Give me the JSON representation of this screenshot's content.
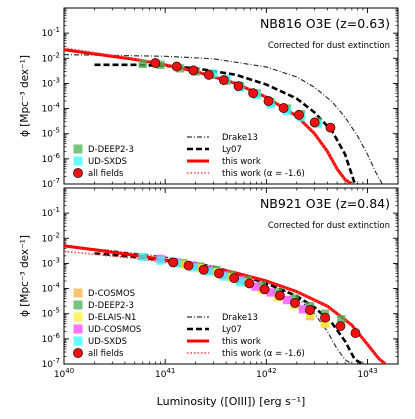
{
  "chart_data": [
    {
      "type": "scatter",
      "title": "NB816 O3E (z=0.63)",
      "subtitle": "Corrected for dust extinction",
      "xlabel": "Luminosity ([OIII]) [erg s⁻¹]",
      "ylabel": "ϕ [Mpc⁻³ dex⁻¹]",
      "x_scale": "log",
      "y_scale": "log",
      "xlim": [
        1e+40,
        2e+43
      ],
      "ylim": [
        1e-07,
        1
      ],
      "x_ticks": [
        {
          "value": 1e+40,
          "base": "10",
          "exp": "40"
        },
        {
          "value": 1e+41,
          "base": "10",
          "exp": "41"
        },
        {
          "value": 1e+42,
          "base": "10",
          "exp": "42"
        },
        {
          "value": 1e+43,
          "base": "10",
          "exp": "43"
        }
      ],
      "y_ticks": [
        {
          "value": 1e-07,
          "base": "10",
          "exp": "-7"
        },
        {
          "value": 1e-06,
          "base": "10",
          "exp": "-6"
        },
        {
          "value": 1e-05,
          "base": "10",
          "exp": "-5"
        },
        {
          "value": 0.0001,
          "base": "10",
          "exp": "-4"
        },
        {
          "value": 0.001,
          "base": "10",
          "exp": "-3"
        },
        {
          "value": 0.01,
          "base": "10",
          "exp": "-2"
        },
        {
          "value": 0.1,
          "base": "10",
          "exp": "-1"
        }
      ],
      "legend_position": "lower-left and lower-center",
      "points": [
        {
          "name": "D-DEEP2-3",
          "marker": "square",
          "color": "#4caf50",
          "x": [
            6e+40,
            9e+40,
            1.4e+41,
            2e+41,
            2.8e+41,
            4e+41,
            5.5e+41,
            8e+41,
            1.1e+42,
            1.6e+42,
            2.2e+42,
            3.2e+42
          ],
          "y": [
            0.006,
            0.0055,
            0.004,
            0.003,
            0.0022,
            0.0013,
            0.0008,
            0.0004,
            0.00018,
            0.0001,
            6e-05,
            3e-05
          ]
        },
        {
          "name": "UD-SXDS",
          "marker": "square",
          "color": "#33ffff",
          "x": [
            3e+41,
            4e+41,
            5.5e+41,
            8e+41,
            1.1e+42,
            1.6e+42,
            2.2e+42,
            3.2e+42
          ],
          "y": [
            0.0025,
            0.0015,
            0.0007,
            0.00035,
            0.00015,
            8e-05,
            4.5e-05,
            2.5e-05
          ]
        },
        {
          "name": "all fields",
          "marker": "circle",
          "color": "#ee1111",
          "x": [
            8e+40,
            1.3e+41,
            1.9e+41,
            2.7e+41,
            3.8e+41,
            5.3e+41,
            7.4e+41,
            1.05e+42,
            1.48e+42,
            2.1e+42,
            3e+42,
            4.3e+42
          ],
          "y": [
            0.0065,
            0.0047,
            0.0033,
            0.0022,
            0.00135,
            0.00078,
            0.00041,
            0.0002,
            0.000105,
            5.6e-05,
            2.8e-05,
            1.75e-05
          ]
        }
      ],
      "lines": [
        {
          "name": "Drake13",
          "style": "dashdot-gray",
          "color": "#333333",
          "x": [
            1e+40,
            3e+40,
            1e+41,
            3e+41,
            1e+42,
            2e+42,
            3e+42,
            4.5e+42,
            6e+42,
            8e+42,
            1e+43,
            1.2e+43,
            1.4e+43
          ],
          "y": [
            0.014,
            0.013,
            0.012,
            0.0095,
            0.0045,
            0.0018,
            0.0007,
            0.00018,
            4.5e-05,
            8e-06,
            1.5e-06,
            3e-07,
            1e-07
          ]
        },
        {
          "name": "Ly07",
          "style": "dashed-black",
          "color": "#000000",
          "x": [
            2e+40,
            5e+40,
            1e+41,
            2e+41,
            5e+41,
            1e+42,
            2e+42,
            3e+42,
            4.5e+42,
            6e+42,
            7.5e+42
          ],
          "y": [
            0.0055,
            0.0055,
            0.005,
            0.004,
            0.0022,
            0.0009,
            0.00025,
            7e-05,
            1.2e-05,
            1.5e-06,
            1e-07
          ]
        },
        {
          "name": "this work",
          "style": "solid-red",
          "color": "#ff0000",
          "x": [
            1e+40,
            2e+40,
            5e+40,
            1e+41,
            2e+41,
            5e+41,
            1e+42,
            2e+42,
            3e+42,
            4e+42,
            5e+42,
            6e+42,
            7e+42
          ],
          "y": [
            0.022,
            0.015,
            0.009,
            0.0055,
            0.003,
            0.001,
            0.00028,
            5e-05,
            1e-05,
            2e-06,
            4e-07,
            1.5e-07,
            1e-07
          ]
        },
        {
          "name": "this work (α = -1.6)",
          "style": "dotted-red",
          "color": "#ff4444",
          "x": [
            1e+40,
            2e+40,
            5e+40,
            1e+41,
            2e+41,
            5e+41,
            1e+42,
            2e+42,
            3e+42,
            4e+42,
            5e+42,
            6e+42,
            7e+42
          ],
          "y": [
            0.026,
            0.017,
            0.0095,
            0.0058,
            0.0032,
            0.00105,
            0.00029,
            5e-05,
            1e-05,
            2e-06,
            4e-07,
            1.5e-07,
            1e-07
          ]
        }
      ],
      "legend_points": [
        "D-DEEP2-3",
        "UD-SXDS",
        "all fields"
      ],
      "legend_lines": [
        "Drake13",
        "Ly07",
        "this work",
        "this work (α = -1.6)"
      ]
    },
    {
      "type": "scatter",
      "title": "NB921 O3E (z=0.84)",
      "subtitle": "Corrected for dust extinction",
      "xlabel": "Luminosity ([OIII]) [erg s⁻¹]",
      "ylabel": "ϕ [Mpc⁻³ dex⁻¹]",
      "x_scale": "log",
      "y_scale": "log",
      "xlim": [
        1e+40,
        2e+43
      ],
      "ylim": [
        1e-07,
        1
      ],
      "x_ticks": [
        {
          "value": 1e+40,
          "base": "10",
          "exp": "40"
        },
        {
          "value": 1e+41,
          "base": "10",
          "exp": "41"
        },
        {
          "value": 1e+42,
          "base": "10",
          "exp": "42"
        },
        {
          "value": 1e+43,
          "base": "10",
          "exp": "43"
        }
      ],
      "y_ticks": [
        {
          "value": 1e-07,
          "base": "10",
          "exp": "-7"
        },
        {
          "value": 1e-06,
          "base": "10",
          "exp": "-6"
        },
        {
          "value": 1e-05,
          "base": "10",
          "exp": "-5"
        },
        {
          "value": 0.0001,
          "base": "10",
          "exp": "-4"
        },
        {
          "value": 0.001,
          "base": "10",
          "exp": "-3"
        },
        {
          "value": 0.01,
          "base": "10",
          "exp": "-2"
        },
        {
          "value": 0.1,
          "base": "10",
          "exp": "-1"
        }
      ],
      "legend_position": "lower-left and lower-center",
      "points": [
        {
          "name": "D-COSMOS",
          "marker": "square",
          "color": "#f5b041",
          "x": [
            1.5e+41,
            2.2e+41,
            3.2e+41,
            4.5e+41,
            6.5e+41,
            9e+41,
            1.3e+42,
            1.9e+42,
            2.7e+42,
            3.8e+42
          ],
          "y": [
            0.001,
            0.0007,
            0.0005,
            0.0003,
            0.00018,
            0.0001,
            5e-05,
            2.5e-05,
            8e-06,
            4e-06
          ]
        },
        {
          "name": "D-DEEP2-3",
          "marker": "square",
          "color": "#4caf50",
          "x": [
            1.5e+41,
            2.2e+41,
            3.2e+41,
            4.5e+41,
            6.5e+41,
            9e+41,
            1.3e+42,
            1.9e+42,
            2.7e+42,
            3.8e+42,
            5.5e+42
          ],
          "y": [
            0.001,
            0.00075,
            0.00055,
            0.00035,
            0.00022,
            0.00013,
            7e-05,
            4e-05,
            2e-05,
            1e-05,
            6e-06
          ]
        },
        {
          "name": "D-ELAIS-N1",
          "marker": "square",
          "color": "#ffee33",
          "x": [
            1.5e+41,
            2.2e+41,
            3.2e+41,
            4.5e+41,
            6.5e+41,
            9e+41,
            1.3e+42,
            1.9e+42,
            2.7e+42,
            3.8e+42
          ],
          "y": [
            0.0009,
            0.00065,
            0.00045,
            0.00028,
            0.00017,
            9e-05,
            4.5e-05,
            2.2e-05,
            1e-05,
            4e-06
          ]
        },
        {
          "name": "UD-COSMOS",
          "marker": "square",
          "color": "#ff44ff",
          "x": [
            9e+40,
            1.3e+41,
            1.9e+41,
            2.7e+41,
            3.8e+41,
            5.5e+41,
            7.8e+41,
            1.1e+42,
            1.6e+42,
            2.3e+42
          ],
          "y": [
            0.0015,
            0.0011,
            0.0008,
            0.00055,
            0.00035,
            0.00022,
            0.00012,
            7e-05,
            3.5e-05,
            1.5e-05
          ]
        },
        {
          "name": "UD-SXDS",
          "marker": "square",
          "color": "#33ffff",
          "x": [
            6e+40,
            9e+40,
            1.3e+41,
            1.9e+41,
            2.7e+41,
            3.8e+41,
            5.5e+41
          ],
          "y": [
            0.0018,
            0.0013,
            0.001,
            0.0007,
            0.00048,
            0.0003,
            0.00018
          ]
        },
        {
          "name": "all fields",
          "marker": "circle",
          "color": "#ee1111",
          "x": [
            1.2e+41,
            1.7e+41,
            2.4e+41,
            3.4e+41,
            4.8e+41,
            6.8e+41,
            9.6e+41,
            1.36e+42,
            1.92e+42,
            2.7e+42,
            3.8e+42,
            5.4e+42,
            7.6e+42
          ],
          "y": [
            0.0011,
            0.00082,
            0.00056,
            0.0004,
            0.00026,
            0.00016,
            9.4e-05,
            5.3e-05,
            2.7e-05,
            1.4e-05,
            7e-06,
            3.2e-06,
            1.7e-06
          ]
        }
      ],
      "lines": [
        {
          "name": "Drake13",
          "style": "dashdot-gray",
          "color": "#333333",
          "x": [
            1e+40,
            3e+40,
            1e+41,
            3e+41,
            1e+42,
            2e+42,
            3e+42,
            4e+42,
            5e+42,
            6e+42,
            7e+42
          ],
          "y": [
            0.005,
            0.0032,
            0.0018,
            0.0008,
            0.00019,
            4.5e-05,
            1e-05,
            2e-06,
            4e-07,
            1.5e-07,
            1e-07
          ]
        },
        {
          "name": "Ly07",
          "style": "dashed-black",
          "color": "#000000",
          "x": [
            2e+40,
            5e+40,
            1e+41,
            2e+41,
            5e+41,
            1e+42,
            2e+42,
            3e+42,
            4.5e+42,
            6e+42,
            7.5e+42,
            9e+42
          ],
          "y": [
            0.0025,
            0.0018,
            0.0013,
            0.00085,
            0.0004,
            0.00016,
            5e-05,
            1.8e-05,
            4e-06,
            8e-07,
            1.5e-07,
            1e-07
          ]
        },
        {
          "name": "this work",
          "style": "solid-red",
          "color": "#ff0000",
          "x": [
            1e+40,
            2e+40,
            5e+40,
            1e+41,
            2e+41,
            5e+41,
            1e+42,
            2e+42,
            4e+42,
            7e+42,
            1e+43,
            1.3e+43,
            1.5e+43
          ],
          "y": [
            0.005,
            0.0035,
            0.0021,
            0.0014,
            0.0009,
            0.00042,
            0.0002,
            7.5e-05,
            2e-05,
            3.5e-06,
            6e-07,
            1.6e-07,
            1e-07
          ]
        },
        {
          "name": "this work (α = -1.6)",
          "style": "dotted-red",
          "color": "#ff4444",
          "x": [
            1e+40,
            2e+40,
            5e+40,
            1e+41,
            2e+41,
            5e+41,
            1e+42,
            2e+42,
            4e+42,
            7e+42,
            1e+43,
            1.3e+43,
            1.5e+43
          ],
          "y": [
            0.003,
            0.0023,
            0.0016,
            0.0011,
            0.00075,
            0.00038,
            0.00019,
            7.3e-05,
            2e-05,
            3.5e-06,
            6e-07,
            1.6e-07,
            1e-07
          ]
        }
      ],
      "legend_points": [
        "D-COSMOS",
        "D-DEEP2-3",
        "D-ELAIS-N1",
        "UD-COSMOS",
        "UD-SXDS",
        "all fields"
      ],
      "legend_lines": [
        "Drake13",
        "Ly07",
        "this work",
        "this work (α = -1.6)"
      ]
    }
  ]
}
